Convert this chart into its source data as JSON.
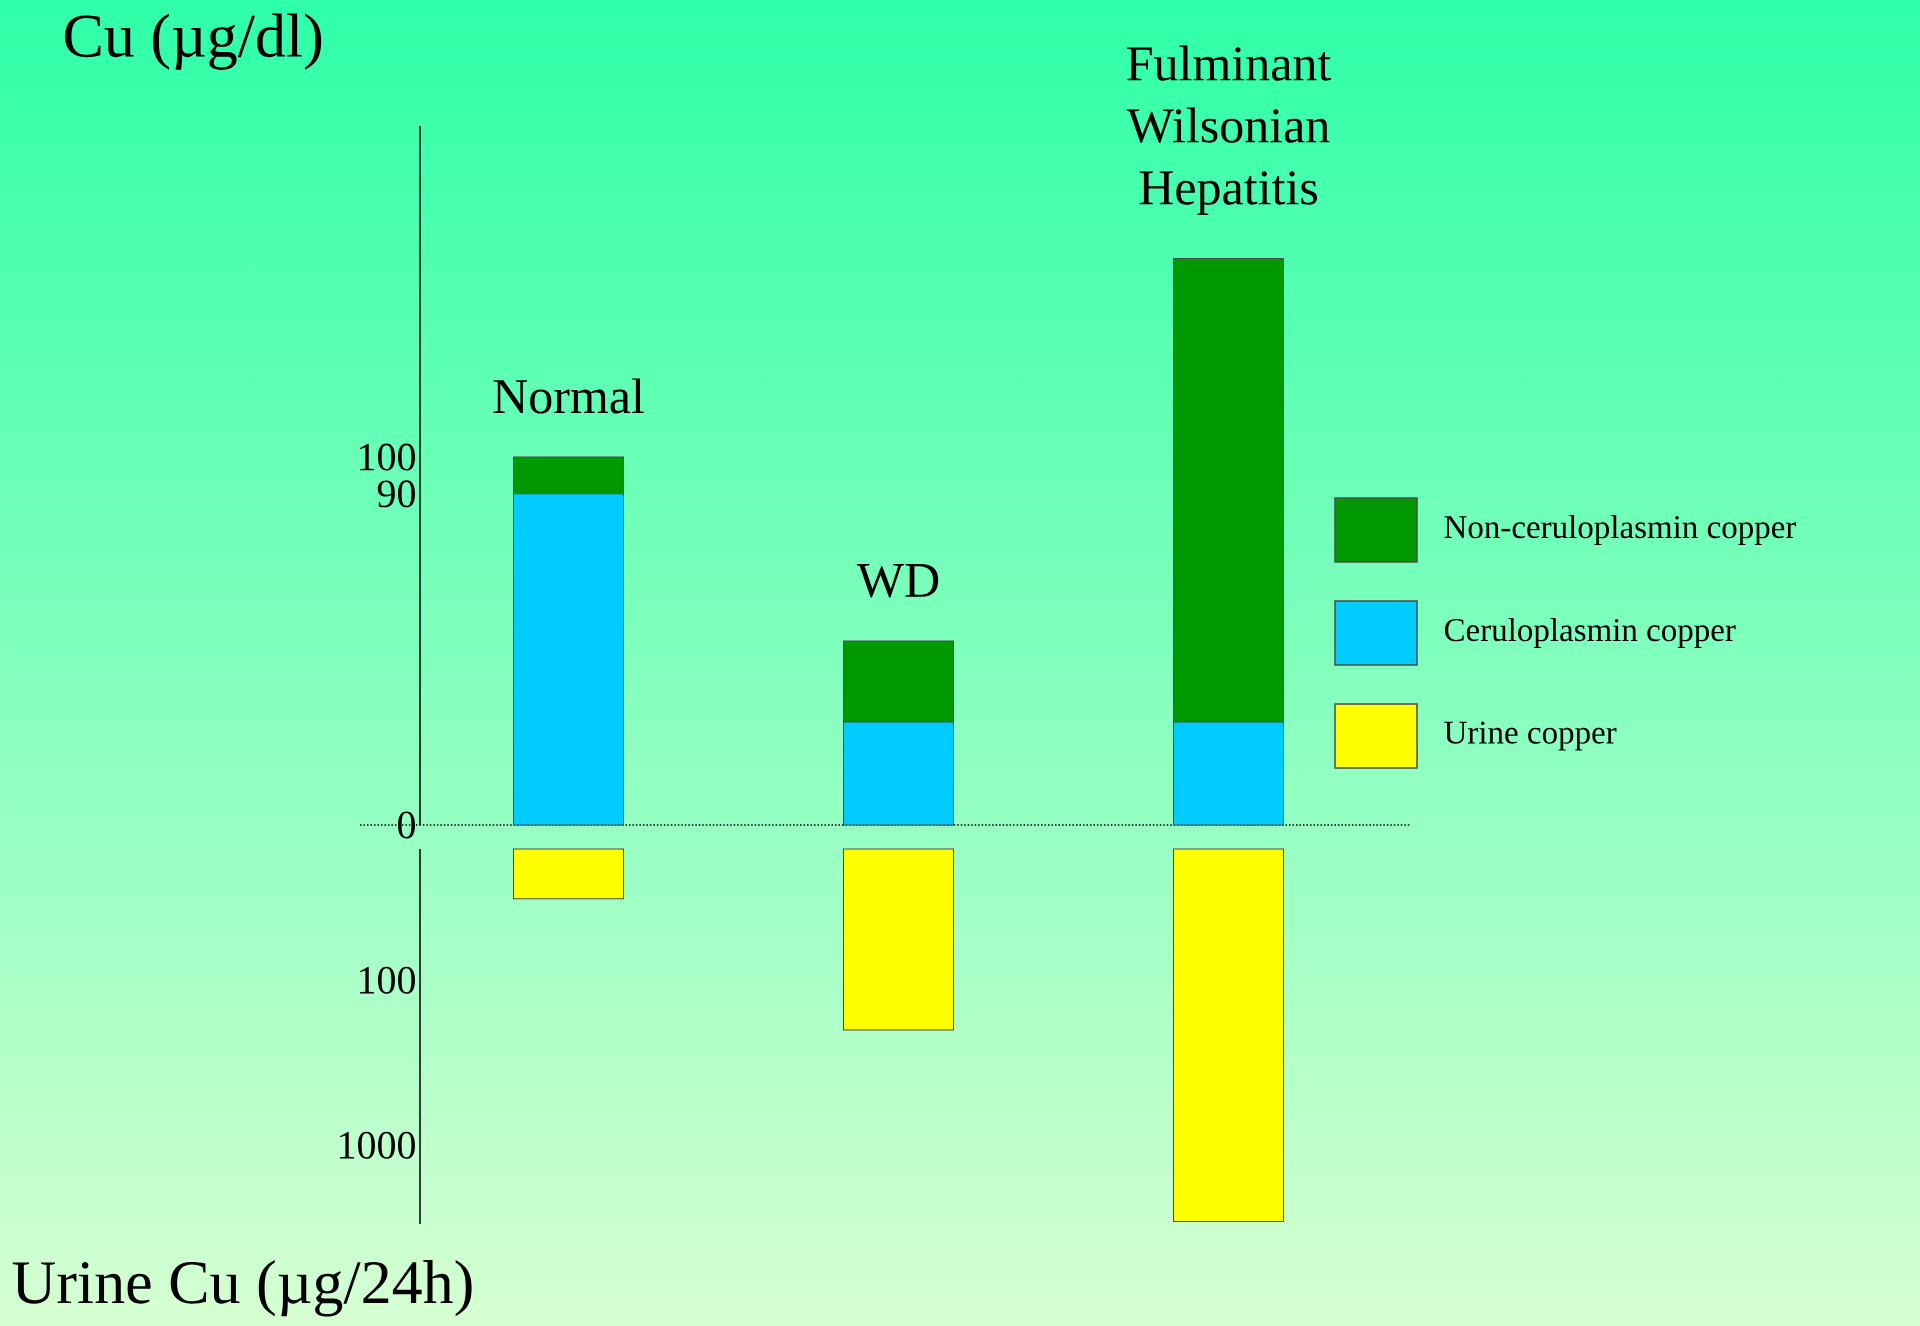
{
  "chart_data": [
    {
      "type": "bar",
      "stacked": true,
      "categories": [
        "Normal",
        "WD",
        "Fulminant Wilsonian Hepatitis"
      ],
      "ylabel": "Cu (µg/dl)",
      "ylim": [
        0,
        190
      ],
      "yticks": [
        0,
        90,
        100
      ],
      "legend": "right",
      "series": [
        {
          "name": "Ceruloplasmin copper",
          "color": "#00ccff",
          "values": [
            90,
            28,
            28
          ]
        },
        {
          "name": "Non-ceruloplasmin copper",
          "color": "#009900",
          "values": [
            10,
            22,
            126
          ]
        }
      ]
    },
    {
      "type": "bar",
      "categories": [
        null,
        null,
        null
      ],
      "tick_labels": "y",
      "ylabel": "Urine Cu (µg/24h)",
      "ylim": [
        3000,
        16
      ],
      "yticks": [
        100,
        1000
      ],
      "log": true,
      "legend": "right",
      "series": [
        {
          "name": "Urine copper",
          "color": "#ffff00",
          "values": [
            32,
            200,
            2900
          ]
        }
      ]
    }
  ]
}
